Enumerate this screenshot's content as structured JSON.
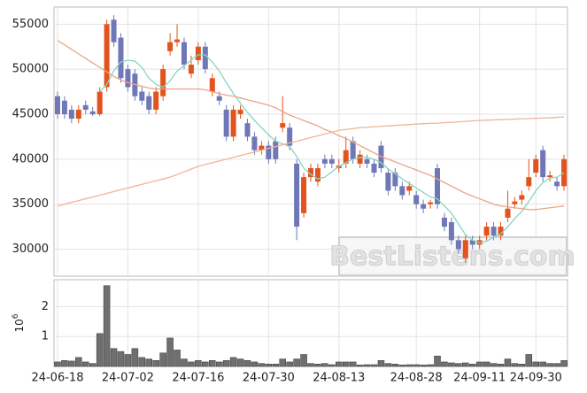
{
  "chart_data": [
    {
      "type": "candlestick",
      "categories": [
        "24-06-18",
        null,
        null,
        null,
        null,
        null,
        null,
        null,
        null,
        null,
        "24-07-02",
        null,
        null,
        null,
        null,
        null,
        null,
        null,
        null,
        null,
        "24-07-16",
        null,
        null,
        null,
        null,
        null,
        null,
        null,
        null,
        null,
        "24-07-30",
        null,
        null,
        null,
        null,
        null,
        null,
        null,
        null,
        null,
        "24-08-13",
        null,
        null,
        null,
        null,
        null,
        null,
        null,
        null,
        null,
        null,
        "24-08-28",
        null,
        null,
        null,
        null,
        null,
        null,
        null,
        null,
        "24-09-11",
        null,
        null,
        null,
        null,
        null,
        null,
        null,
        "24-09-30",
        null,
        null,
        null,
        null
      ],
      "open": [
        47000,
        46500,
        45500,
        44500,
        46000,
        45300,
        45000,
        48000,
        55500,
        53500,
        50000,
        49500,
        47500,
        47000,
        45500,
        47000,
        52000,
        53000,
        53000,
        49500,
        51000,
        52500,
        47500,
        47000,
        45500,
        42500,
        45000,
        44000,
        42500,
        41000,
        41500,
        42000,
        43500,
        43500,
        39500,
        34000,
        38000,
        37500,
        40000,
        40000,
        39000,
        39500,
        42000,
        39500,
        40000,
        39500,
        41500,
        38500,
        38500,
        37000,
        36500,
        36000,
        35000,
        35000,
        39000,
        33500,
        33000,
        31000,
        29000,
        31000,
        30500,
        31500,
        32500,
        31500,
        33500,
        35000,
        35500,
        37000,
        38500,
        41000,
        38000,
        37500,
        37000
      ],
      "close": [
        45000,
        45000,
        44500,
        45500,
        45500,
        45000,
        47500,
        55000,
        53000,
        49000,
        48000,
        47000,
        46500,
        45500,
        47500,
        50000,
        53000,
        53300,
        50500,
        50500,
        52500,
        50000,
        49000,
        46500,
        42500,
        45500,
        45500,
        42500,
        41000,
        41500,
        40000,
        40000,
        44000,
        41500,
        32500,
        38000,
        39000,
        39000,
        39500,
        39500,
        39300,
        41000,
        40000,
        40500,
        39500,
        38500,
        39000,
        36500,
        37000,
        36000,
        37000,
        35000,
        34500,
        35200,
        35000,
        32500,
        31000,
        30000,
        31000,
        30500,
        31000,
        32500,
        31500,
        32500,
        34500,
        35300,
        36000,
        38000,
        40000,
        38000,
        38200,
        37000,
        40000
      ],
      "high": [
        47500,
        47000,
        46000,
        46000,
        46500,
        45800,
        48000,
        55500,
        56000,
        54000,
        50500,
        50000,
        48000,
        47500,
        48000,
        50500,
        54000,
        55000,
        53500,
        51500,
        53000,
        53000,
        49500,
        47500,
        46000,
        46000,
        46000,
        44500,
        43000,
        42000,
        42000,
        42500,
        47000,
        44000,
        40000,
        38500,
        39500,
        39500,
        40500,
        40500,
        40000,
        42500,
        42500,
        41000,
        40500,
        40000,
        42000,
        39000,
        39000,
        37500,
        37500,
        36500,
        35500,
        35500,
        39500,
        34000,
        33500,
        31500,
        31500,
        31500,
        31500,
        33000,
        33000,
        33000,
        36500,
        35800,
        36500,
        40000,
        40500,
        41500,
        38700,
        38000,
        40500
      ],
      "low": [
        44500,
        44500,
        44000,
        44000,
        45000,
        44800,
        44800,
        47500,
        52500,
        48500,
        47500,
        46500,
        46000,
        45000,
        45000,
        46500,
        51500,
        52500,
        50000,
        49000,
        50500,
        49500,
        47000,
        46000,
        42000,
        42000,
        44500,
        42000,
        40500,
        40500,
        39500,
        39500,
        43000,
        41000,
        31000,
        33500,
        37500,
        37000,
        39000,
        39000,
        38500,
        39000,
        39500,
        39000,
        39000,
        38000,
        38500,
        36000,
        36500,
        35500,
        36000,
        34500,
        34000,
        34500,
        34500,
        32000,
        30500,
        29500,
        28500,
        30000,
        30000,
        31000,
        31000,
        31000,
        33000,
        34500,
        35000,
        36500,
        38000,
        37500,
        37500,
        36500,
        36500
      ],
      "up_color": "#e2531d",
      "down_color": "#6f77b6",
      "series": [
        {
          "color": "#86d6c0",
          "values": [
            null,
            null,
            null,
            null,
            null,
            null,
            47500,
            48300,
            49800,
            50800,
            51000,
            50900,
            50200,
            49000,
            48300,
            48000,
            48700,
            49800,
            50400,
            51000,
            51600,
            51600,
            50800,
            49800,
            48500,
            47300,
            46200,
            45200,
            44300,
            43500,
            42700,
            42000,
            41700,
            41400,
            40300,
            39000,
            38300,
            37800,
            38000,
            38600,
            39200,
            39600,
            40000,
            40200,
            40200,
            40000,
            39600,
            38900,
            38400,
            37800,
            37300,
            36800,
            36300,
            35800,
            35600,
            34800,
            34000,
            32800,
            31600,
            31000,
            30700,
            30900,
            31300,
            31700,
            32500,
            33400,
            34200,
            35300,
            36500,
            37400,
            37900,
            38000,
            38500
          ]
        },
        {
          "color": "#eaa587",
          "values": [
            53200,
            52700,
            52200,
            51700,
            51200,
            50700,
            50200,
            49700,
            49200,
            48800,
            48500,
            48300,
            48100,
            47900,
            47800,
            47800,
            47800,
            47800,
            47800,
            47800,
            47800,
            47700,
            47500,
            47300,
            47100,
            47000,
            46800,
            46600,
            46400,
            46200,
            46000,
            45700,
            45300,
            44900,
            44600,
            44300,
            44000,
            43700,
            43300,
            43000,
            42600,
            42300,
            41900,
            41500,
            41100,
            40700,
            40300,
            40000,
            39700,
            39400,
            39100,
            38800,
            38500,
            38200,
            37800,
            37400,
            37000,
            36600,
            36200,
            35900,
            35600,
            35300,
            35000,
            34800,
            34700,
            34600,
            34500,
            34400,
            34400,
            34500,
            34600,
            34700,
            34800
          ]
        },
        {
          "color": "#efb595",
          "values": [
            34800,
            35000,
            35200,
            35400,
            35600,
            35800,
            36000,
            36200,
            36400,
            36600,
            36800,
            37000,
            37200,
            37400,
            37600,
            37800,
            38000,
            38300,
            38600,
            38900,
            39200,
            39400,
            39600,
            39800,
            40000,
            40200,
            40400,
            40600,
            40800,
            41000,
            41200,
            41400,
            41600,
            41800,
            42000,
            42200,
            42400,
            42600,
            42800,
            43000,
            43200,
            43300,
            43400,
            43500,
            43550,
            43600,
            43650,
            43700,
            43750,
            43800,
            43850,
            43900,
            43950,
            43980,
            44000,
            44050,
            44100,
            44150,
            44200,
            44250,
            44300,
            44330,
            44360,
            44390,
            44420,
            44450,
            44480,
            44510,
            44540,
            44570,
            44600,
            44650,
            44700
          ]
        }
      ],
      "ylim": [
        27000,
        56900
      ],
      "yticks": [
        30000,
        35000,
        40000,
        45000,
        50000,
        55000
      ],
      "grid": true,
      "watermark": "BestListens.com"
    },
    {
      "type": "bar",
      "color": "#6f6f6f",
      "values": [
        150000,
        200000,
        180000,
        300000,
        150000,
        100000,
        1100000,
        2700000,
        600000,
        500000,
        400000,
        600000,
        300000,
        250000,
        200000,
        450000,
        950000,
        550000,
        250000,
        150000,
        200000,
        150000,
        200000,
        150000,
        200000,
        300000,
        250000,
        200000,
        150000,
        100000,
        80000,
        80000,
        250000,
        150000,
        250000,
        400000,
        100000,
        80000,
        100000,
        60000,
        150000,
        150000,
        150000,
        50000,
        60000,
        60000,
        200000,
        100000,
        80000,
        50000,
        60000,
        60000,
        50000,
        60000,
        350000,
        150000,
        120000,
        100000,
        120000,
        80000,
        150000,
        150000,
        100000,
        80000,
        250000,
        100000,
        80000,
        400000,
        150000,
        150000,
        100000,
        100000,
        200000
      ],
      "ylim": [
        0,
        2900000
      ],
      "yticks": [
        {
          "value": 1000000,
          "label": "1"
        },
        {
          "value": 2000000,
          "label": "2"
        }
      ],
      "offset_label": {
        "base": "10",
        "exponent": "6"
      },
      "grid": true
    }
  ]
}
